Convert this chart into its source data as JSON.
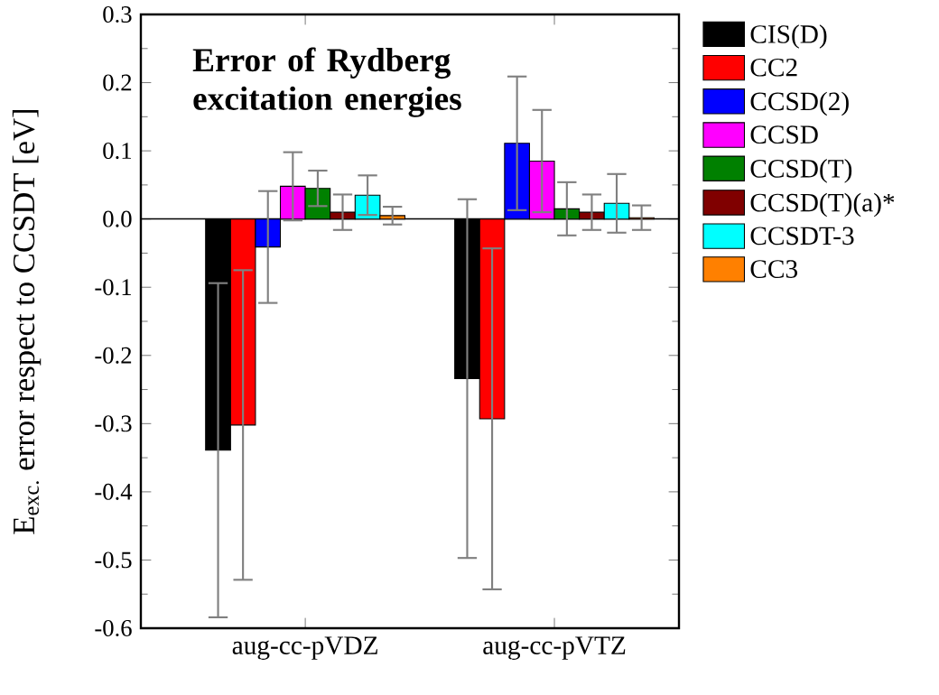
{
  "chart_data": {
    "type": "bar",
    "title": "Error of Rydberg excitation energies",
    "ylabel": "E$_{exc.}$ error respect to CCSDT [eV]",
    "categories": [
      "aug-cc-pVDZ",
      "aug-cc-pVTZ"
    ],
    "series": [
      {
        "name": "CIS(D)",
        "color": "#000000",
        "values": [
          -0.339,
          -0.234
        ],
        "errors": [
          0.245,
          0.263
        ]
      },
      {
        "name": "CC2",
        "color": "#ff0000",
        "values": [
          -0.302,
          -0.293
        ],
        "errors": [
          0.227,
          0.25
        ]
      },
      {
        "name": "CCSD(2)",
        "color": "#0000ff",
        "values": [
          -0.041,
          0.111
        ],
        "errors": [
          0.082,
          0.098
        ]
      },
      {
        "name": "CCSD",
        "color": "#ff00ff",
        "values": [
          0.048,
          0.085
        ],
        "errors": [
          0.05,
          0.075
        ]
      },
      {
        "name": "CCSD(T)",
        "color": "#008000",
        "values": [
          0.045,
          0.015
        ],
        "errors": [
          0.026,
          0.039
        ]
      },
      {
        "name": "CCSD(T)(a)*",
        "color": "#800000",
        "values": [
          0.01,
          0.01
        ],
        "errors": [
          0.026,
          0.026
        ]
      },
      {
        "name": "CCSDT-3",
        "color": "#00ffff",
        "values": [
          0.035,
          0.023
        ],
        "errors": [
          0.029,
          0.043
        ]
      },
      {
        "name": "CC3",
        "color": "#ff8000",
        "values": [
          0.005,
          0.002
        ],
        "errors": [
          0.013,
          0.018
        ]
      }
    ],
    "ylim": [
      -0.6,
      0.3
    ],
    "yticks": [
      -0.6,
      -0.5,
      -0.4,
      -0.3,
      -0.2,
      -0.1,
      {
        "value": 0,
        "label": "0.0"
      },
      0.1,
      0.2,
      0.3
    ],
    "ref_lines": [
      {
        "axis": "y",
        "value": 0
      }
    ],
    "legend": "right"
  }
}
